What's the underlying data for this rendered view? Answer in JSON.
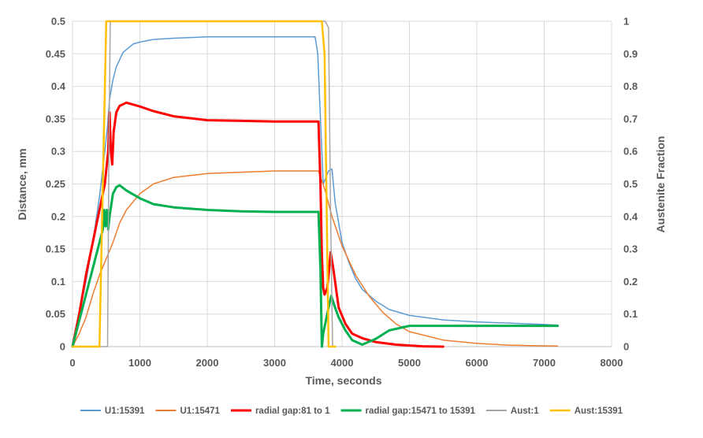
{
  "chart_data": {
    "type": "line",
    "xlabel": "Time, seconds",
    "ylabel_left": "Distance, mm",
    "ylabel_right": "Austenite Fraction",
    "xlim": [
      0,
      8000
    ],
    "ylim_left": [
      0,
      0.5
    ],
    "ylim_right": [
      0,
      1
    ],
    "x_ticks": [
      "0",
      "1000",
      "2000",
      "3000",
      "4000",
      "5000",
      "6000",
      "7000",
      "8000"
    ],
    "y_left_ticks": [
      "0",
      "0.05",
      "0.1",
      "0.15",
      "0.2",
      "0.25",
      "0.3",
      "0.35",
      "0.4",
      "0.45",
      "0.5"
    ],
    "y_right_ticks": [
      "0",
      "0.1",
      "0.2",
      "0.3",
      "0.4",
      "0.5",
      "0.6",
      "0.7",
      "0.8",
      "0.9",
      "1"
    ],
    "grid": true,
    "legend_position": "bottom",
    "series": [
      {
        "name": "U1:15391",
        "axis": "left",
        "color": "#5b9bd5",
        "width": 1.5,
        "points": [
          [
            0,
            0
          ],
          [
            100,
            0.05
          ],
          [
            200,
            0.1
          ],
          [
            300,
            0.16
          ],
          [
            400,
            0.23
          ],
          [
            480,
            0.3
          ],
          [
            520,
            0.34
          ],
          [
            550,
            0.38
          ],
          [
            600,
            0.41
          ],
          [
            650,
            0.43
          ],
          [
            750,
            0.452
          ],
          [
            900,
            0.465
          ],
          [
            1000,
            0.468
          ],
          [
            1200,
            0.472
          ],
          [
            1500,
            0.474
          ],
          [
            2000,
            0.476
          ],
          [
            2500,
            0.476
          ],
          [
            3000,
            0.476
          ],
          [
            3600,
            0.476
          ],
          [
            3640,
            0.45
          ],
          [
            3680,
            0.35
          ],
          [
            3720,
            0.25
          ],
          [
            3760,
            0.26
          ],
          [
            3800,
            0.27
          ],
          [
            3850,
            0.273
          ],
          [
            3900,
            0.22
          ],
          [
            4000,
            0.16
          ],
          [
            4100,
            0.13
          ],
          [
            4200,
            0.105
          ],
          [
            4300,
            0.088
          ],
          [
            4500,
            0.07
          ],
          [
            4700,
            0.057
          ],
          [
            5000,
            0.048
          ],
          [
            5500,
            0.041
          ],
          [
            6000,
            0.038
          ],
          [
            6500,
            0.036
          ],
          [
            7000,
            0.034
          ],
          [
            7200,
            0.033
          ]
        ]
      },
      {
        "name": "U1:15471",
        "axis": "left",
        "color": "#ed7d31",
        "width": 1.5,
        "points": [
          [
            0,
            0
          ],
          [
            100,
            0.02
          ],
          [
            200,
            0.045
          ],
          [
            300,
            0.08
          ],
          [
            400,
            0.11
          ],
          [
            500,
            0.135
          ],
          [
            600,
            0.16
          ],
          [
            700,
            0.19
          ],
          [
            800,
            0.21
          ],
          [
            1000,
            0.235
          ],
          [
            1200,
            0.25
          ],
          [
            1500,
            0.26
          ],
          [
            2000,
            0.266
          ],
          [
            2500,
            0.268
          ],
          [
            3000,
            0.27
          ],
          [
            3650,
            0.27
          ],
          [
            3750,
            0.24
          ],
          [
            3850,
            0.2
          ],
          [
            4000,
            0.155
          ],
          [
            4200,
            0.11
          ],
          [
            4400,
            0.078
          ],
          [
            4600,
            0.053
          ],
          [
            4800,
            0.035
          ],
          [
            5000,
            0.023
          ],
          [
            5500,
            0.01
          ],
          [
            6000,
            0.005
          ],
          [
            6500,
            0.002
          ],
          [
            7200,
            0.001
          ]
        ]
      },
      {
        "name": "radial gap:81 to 1",
        "axis": "left",
        "color": "#ff0000",
        "width": 3,
        "points": [
          [
            0,
            0
          ],
          [
            100,
            0.05
          ],
          [
            200,
            0.11
          ],
          [
            300,
            0.16
          ],
          [
            400,
            0.21
          ],
          [
            480,
            0.25
          ],
          [
            530,
            0.3
          ],
          [
            550,
            0.36
          ],
          [
            570,
            0.3
          ],
          [
            590,
            0.28
          ],
          [
            610,
            0.33
          ],
          [
            650,
            0.36
          ],
          [
            700,
            0.37
          ],
          [
            800,
            0.375
          ],
          [
            1000,
            0.369
          ],
          [
            1200,
            0.362
          ],
          [
            1500,
            0.354
          ],
          [
            2000,
            0.348
          ],
          [
            2500,
            0.347
          ],
          [
            3000,
            0.346
          ],
          [
            3650,
            0.346
          ],
          [
            3680,
            0.25
          ],
          [
            3700,
            0.14
          ],
          [
            3720,
            0.09
          ],
          [
            3740,
            0.08
          ],
          [
            3780,
            0.09
          ],
          [
            3800,
            0.11
          ],
          [
            3830,
            0.145
          ],
          [
            3870,
            0.12
          ],
          [
            3950,
            0.06
          ],
          [
            4050,
            0.035
          ],
          [
            4150,
            0.02
          ],
          [
            4300,
            0.013
          ],
          [
            4500,
            0.007
          ],
          [
            4800,
            0.003
          ],
          [
            5200,
            0.0005
          ],
          [
            5500,
            0
          ]
        ]
      },
      {
        "name": "radial gap:15471 to 15391",
        "axis": "left",
        "color": "#00b050",
        "width": 3,
        "points": [
          [
            0,
            0
          ],
          [
            100,
            0.04
          ],
          [
            200,
            0.08
          ],
          [
            300,
            0.12
          ],
          [
            400,
            0.16
          ],
          [
            450,
            0.18
          ],
          [
            470,
            0.21
          ],
          [
            490,
            0.185
          ],
          [
            510,
            0.21
          ],
          [
            530,
            0.18
          ],
          [
            550,
            0.2
          ],
          [
            600,
            0.235
          ],
          [
            650,
            0.245
          ],
          [
            700,
            0.248
          ],
          [
            800,
            0.24
          ],
          [
            1000,
            0.228
          ],
          [
            1200,
            0.219
          ],
          [
            1500,
            0.214
          ],
          [
            2000,
            0.21
          ],
          [
            2500,
            0.208
          ],
          [
            3000,
            0.207
          ],
          [
            3650,
            0.207
          ],
          [
            3680,
            0.12
          ],
          [
            3700,
            0.0
          ],
          [
            3720,
            0.02
          ],
          [
            3760,
            0.04
          ],
          [
            3800,
            0.06
          ],
          [
            3840,
            0.078
          ],
          [
            3880,
            0.065
          ],
          [
            3950,
            0.045
          ],
          [
            4050,
            0.025
          ],
          [
            4150,
            0.01
          ],
          [
            4300,
            0.003
          ],
          [
            4500,
            0.012
          ],
          [
            4700,
            0.025
          ],
          [
            5000,
            0.032
          ],
          [
            5500,
            0.032
          ],
          [
            6000,
            0.032
          ],
          [
            6500,
            0.032
          ],
          [
            7000,
            0.032
          ],
          [
            7200,
            0.032
          ]
        ]
      },
      {
        "name": "Aust:1",
        "axis": "right",
        "color": "#a5a5a5",
        "width": 1.5,
        "points": [
          [
            0,
            0
          ],
          [
            500,
            0
          ],
          [
            520,
            0
          ],
          [
            540,
            0.6
          ],
          [
            560,
            1
          ],
          [
            600,
            1
          ],
          [
            3650,
            1
          ],
          [
            3750,
            1
          ],
          [
            3800,
            0.98
          ],
          [
            3830,
            0.4
          ],
          [
            3860,
            0
          ],
          [
            3900,
            0
          ]
        ]
      },
      {
        "name": "Aust:15391",
        "axis": "right",
        "color": "#ffc000",
        "width": 2.5,
        "points": [
          [
            0,
            0
          ],
          [
            400,
            0
          ],
          [
            450,
            0.5
          ],
          [
            500,
            1
          ],
          [
            3600,
            1
          ],
          [
            3650,
            1
          ],
          [
            3700,
            1
          ],
          [
            3740,
            0.9
          ],
          [
            3800,
            0.0
          ],
          [
            3900,
            0
          ]
        ]
      }
    ]
  }
}
